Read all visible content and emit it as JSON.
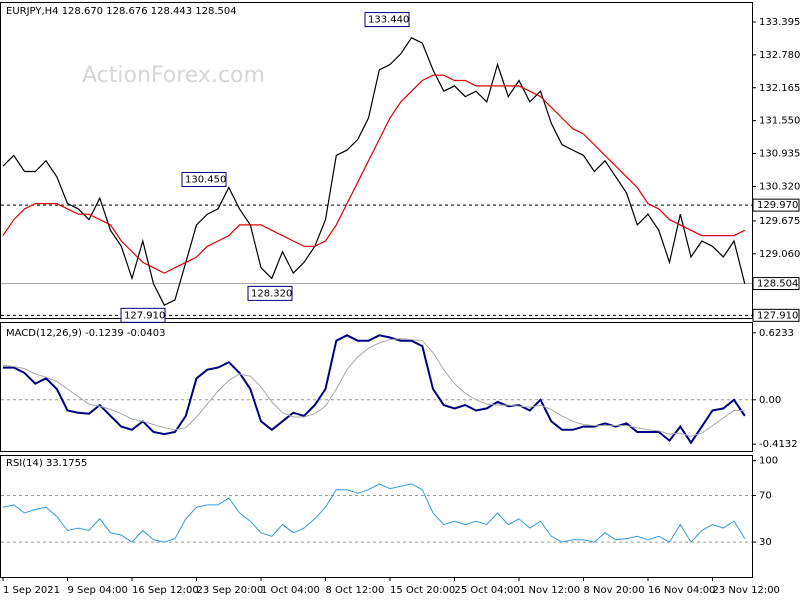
{
  "chart_data": [
    {
      "type": "line",
      "title": "EURJPY,H4  128.670 128.676 128.443 128.504",
      "watermark": "ActionForex.com",
      "categories": [
        "1 Sep 2021",
        null,
        null,
        null,
        null,
        null,
        "9 Sep 04:00",
        null,
        null,
        null,
        null,
        null,
        "16 Sep 12:00",
        null,
        null,
        null,
        null,
        null,
        "23 Sep 20:00",
        null,
        null,
        null,
        null,
        null,
        "1 Oct 04:00",
        null,
        null,
        null,
        null,
        null,
        "8 Oct 12:00",
        null,
        null,
        null,
        null,
        null,
        "15 Oct 20:00",
        null,
        null,
        null,
        null,
        null,
        "25 Oct 04:00",
        null,
        null,
        null,
        null,
        null,
        "1 Nov 12:00",
        null,
        null,
        null,
        null,
        null,
        "8 Nov 20:00",
        null,
        null,
        null,
        null,
        null,
        "16 Nov 04:00",
        null,
        null,
        null,
        null,
        null,
        "23 Nov 12:00",
        null,
        null,
        null
      ],
      "series": [
        {
          "color": "#000000",
          "values": [
            130.7,
            130.9,
            130.6,
            130.6,
            130.8,
            130.5,
            130.0,
            129.9,
            129.7,
            130.1,
            129.5,
            129.2,
            128.6,
            129.3,
            128.5,
            128.1,
            128.2,
            128.9,
            129.6,
            129.8,
            129.9,
            130.3,
            129.9,
            129.6,
            128.8,
            128.6,
            129.1,
            128.7,
            128.9,
            129.2,
            129.7,
            130.9,
            131.0,
            131.2,
            131.6,
            132.5,
            132.6,
            132.8,
            133.1,
            133.0,
            132.5,
            132.1,
            132.2,
            132.0,
            132.1,
            131.9,
            132.6,
            132.0,
            132.3,
            131.9,
            132.1,
            131.5,
            131.1,
            131.0,
            130.9,
            130.6,
            130.8,
            130.5,
            130.2,
            129.6,
            129.8,
            129.5,
            128.9,
            129.8,
            129.0,
            129.3,
            129.2,
            129.0,
            129.3,
            128.5
          ]
        },
        {
          "color": "#e00000",
          "values": [
            129.4,
            129.7,
            129.9,
            130.0,
            130.0,
            130.0,
            129.9,
            129.8,
            129.8,
            129.7,
            129.6,
            129.3,
            129.1,
            128.9,
            128.8,
            128.7,
            128.8,
            128.9,
            129.0,
            129.2,
            129.3,
            129.4,
            129.6,
            129.6,
            129.6,
            129.5,
            129.4,
            129.3,
            129.2,
            129.2,
            129.3,
            129.6,
            130.0,
            130.4,
            130.8,
            131.2,
            131.6,
            131.9,
            132.1,
            132.3,
            132.4,
            132.4,
            132.3,
            132.3,
            132.2,
            132.2,
            132.2,
            132.2,
            132.2,
            132.1,
            132.0,
            131.8,
            131.6,
            131.4,
            131.3,
            131.1,
            130.9,
            130.7,
            130.5,
            130.3,
            130.0,
            129.9,
            129.7,
            129.6,
            129.5,
            129.4,
            129.4,
            129.4,
            129.4,
            129.5
          ]
        }
      ],
      "ylim": [
        127.86,
        133.75
      ],
      "yticks": [
        133.395,
        {
          "value": 132.78,
          "label": "132.780"
        },
        132.165,
        {
          "value": 131.55,
          "label": "131.550"
        },
        130.935,
        {
          "value": 130.32,
          "label": "130.320"
        },
        129.675,
        {
          "value": 129.06,
          "label": "129.060"
        }
      ],
      "levels": [
        {
          "value": 129.97,
          "label": "129.970",
          "style": "dashed"
        },
        {
          "value": 128.504,
          "label": "128.504",
          "style": "solid"
        },
        {
          "value": 127.91,
          "label": "127.910",
          "style": "dashed"
        }
      ],
      "annotations": [
        {
          "value": 133.44,
          "label": "133.440"
        },
        {
          "value": 130.45,
          "label": "130.450"
        },
        {
          "value": 128.32,
          "label": "128.320"
        },
        {
          "value": 127.91,
          "label": "127.910"
        }
      ]
    },
    {
      "type": "line",
      "title": "MACD(12,26,9) -0.1239 -0.0403",
      "series": [
        {
          "color": "#000080",
          "width": 2,
          "values": [
            0.3,
            0.3,
            0.25,
            0.15,
            0.2,
            0.1,
            -0.1,
            -0.12,
            -0.13,
            -0.05,
            -0.15,
            -0.25,
            -0.28,
            -0.2,
            -0.3,
            -0.32,
            -0.3,
            -0.15,
            0.2,
            0.28,
            0.3,
            0.35,
            0.25,
            0.1,
            -0.2,
            -0.28,
            -0.2,
            -0.12,
            -0.15,
            -0.05,
            0.1,
            0.55,
            0.6,
            0.55,
            0.55,
            0.6,
            0.58,
            0.55,
            0.55,
            0.5,
            0.1,
            -0.05,
            -0.08,
            -0.05,
            -0.1,
            -0.08,
            -0.02,
            -0.06,
            -0.05,
            -0.1,
            0.0,
            -0.2,
            -0.28,
            -0.28,
            -0.25,
            -0.25,
            -0.22,
            -0.25,
            -0.22,
            -0.3,
            -0.3,
            -0.3,
            -0.38,
            -0.25,
            -0.4,
            -0.25,
            -0.1,
            -0.08,
            0.0,
            -0.15
          ]
        },
        {
          "color": "#a8a8a8",
          "width": 1,
          "values": [
            0.32,
            0.31,
            0.29,
            0.24,
            0.21,
            0.17,
            0.1,
            0.03,
            -0.04,
            -0.06,
            -0.09,
            -0.13,
            -0.18,
            -0.2,
            -0.23,
            -0.26,
            -0.28,
            -0.26,
            -0.16,
            -0.04,
            0.08,
            0.18,
            0.24,
            0.22,
            0.12,
            -0.02,
            -0.12,
            -0.16,
            -0.16,
            -0.13,
            -0.06,
            0.1,
            0.28,
            0.4,
            0.48,
            0.53,
            0.56,
            0.57,
            0.56,
            0.55,
            0.44,
            0.28,
            0.15,
            0.06,
            0.0,
            -0.04,
            -0.05,
            -0.05,
            -0.06,
            -0.07,
            -0.05,
            -0.09,
            -0.15,
            -0.2,
            -0.23,
            -0.24,
            -0.24,
            -0.24,
            -0.24,
            -0.26,
            -0.28,
            -0.29,
            -0.32,
            -0.31,
            -0.34,
            -0.31,
            -0.24,
            -0.17,
            -0.1,
            -0.1
          ]
        }
      ],
      "ylim": [
        -0.477,
        0.715
      ],
      "yticks": [
        0.6233,
        {
          "value": 0,
          "label": "0.00"
        },
        -0.4132
      ],
      "grid_at": [
        0
      ]
    },
    {
      "type": "line",
      "title": "RSI(14) 33.1755",
      "series": [
        {
          "color": "#3399dd",
          "width": 1,
          "values": [
            60,
            62,
            55,
            58,
            60,
            52,
            40,
            42,
            40,
            50,
            38,
            36,
            30,
            40,
            32,
            30,
            33,
            50,
            60,
            62,
            62,
            68,
            55,
            48,
            38,
            35,
            45,
            38,
            42,
            50,
            60,
            75,
            75,
            72,
            75,
            80,
            76,
            78,
            80,
            75,
            55,
            45,
            48,
            45,
            48,
            45,
            55,
            45,
            50,
            42,
            48,
            35,
            30,
            32,
            32,
            30,
            38,
            32,
            33,
            35,
            32,
            35,
            30,
            45,
            30,
            40,
            45,
            42,
            48,
            33
          ]
        }
      ],
      "ylim": [
        0,
        104
      ],
      "yticks": [
        100,
        70,
        30
      ],
      "grid_at": [
        70,
        30
      ]
    }
  ]
}
